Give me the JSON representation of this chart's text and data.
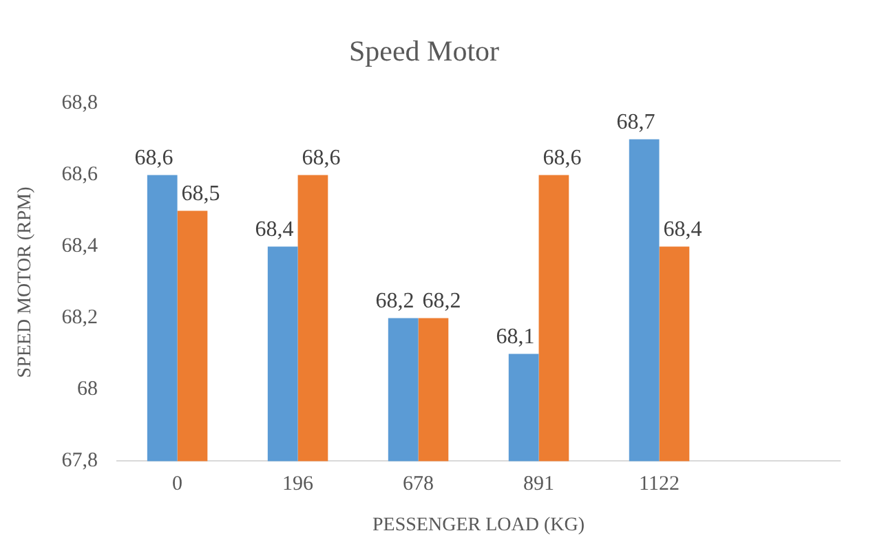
{
  "chart_data": {
    "type": "bar",
    "title": "Speed Motor",
    "xlabel": "PESSENGER LOAD (KG)",
    "ylabel": "SPEED MOTOR (RPM)",
    "categories": [
      "0",
      "196",
      "678",
      "891",
      "1122",
      null
    ],
    "series": [
      {
        "color": "#5b9bd5",
        "values": [
          68.6,
          68.4,
          68.2,
          68.1,
          68.7,
          null
        ],
        "value_labels": [
          "68,6",
          "68,4",
          "68,2",
          "68,1",
          "68,7",
          null
        ]
      },
      {
        "color": "#ed7d31",
        "values": [
          68.5,
          68.6,
          68.2,
          68.6,
          68.4,
          null
        ],
        "value_labels": [
          "68,5",
          "68,6",
          "68,2",
          "68,6",
          "68,4",
          null
        ]
      }
    ],
    "ylim": [
      67.8,
      68.8
    ],
    "yticks": [
      {
        "value": 67.8,
        "label": "67,8"
      },
      {
        "value": 68,
        "label": "68"
      },
      {
        "value": 68.2,
        "label": "68,2"
      },
      {
        "value": 68.4,
        "label": "68,4"
      },
      {
        "value": 68.6,
        "label": "68,6"
      },
      {
        "value": 68.8,
        "label": "68,8"
      }
    ],
    "grid": false,
    "legend": false
  }
}
